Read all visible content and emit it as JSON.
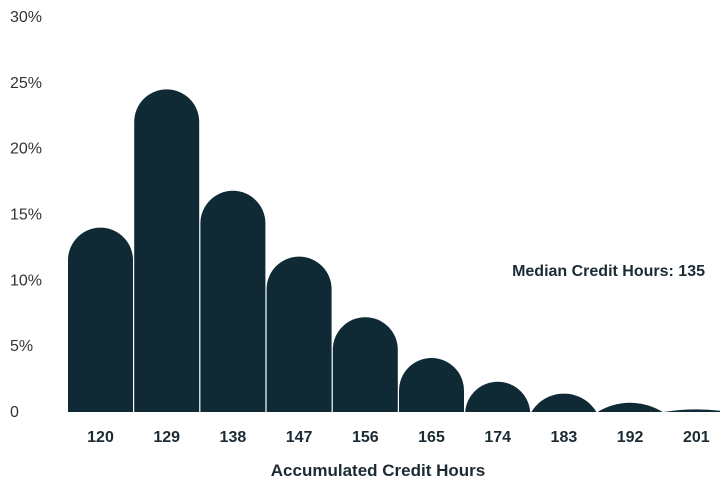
{
  "chart_data": {
    "type": "bar",
    "categories": [
      "120",
      "129",
      "138",
      "147",
      "156",
      "165",
      "174",
      "183",
      "192",
      "201"
    ],
    "values": [
      14.0,
      24.5,
      16.8,
      11.8,
      7.2,
      4.1,
      2.3,
      1.4,
      0.7,
      0.2
    ],
    "xlabel": "Accumulated Credit Hours",
    "ylabel": "",
    "ylim": [
      0,
      30
    ],
    "yticks": [
      "0",
      "5%",
      "10%",
      "15%",
      "20%",
      "25%",
      "30%"
    ],
    "annotation": "Median Credit Hours: 135",
    "grid": false,
    "bar_color": "#0f2a35"
  }
}
